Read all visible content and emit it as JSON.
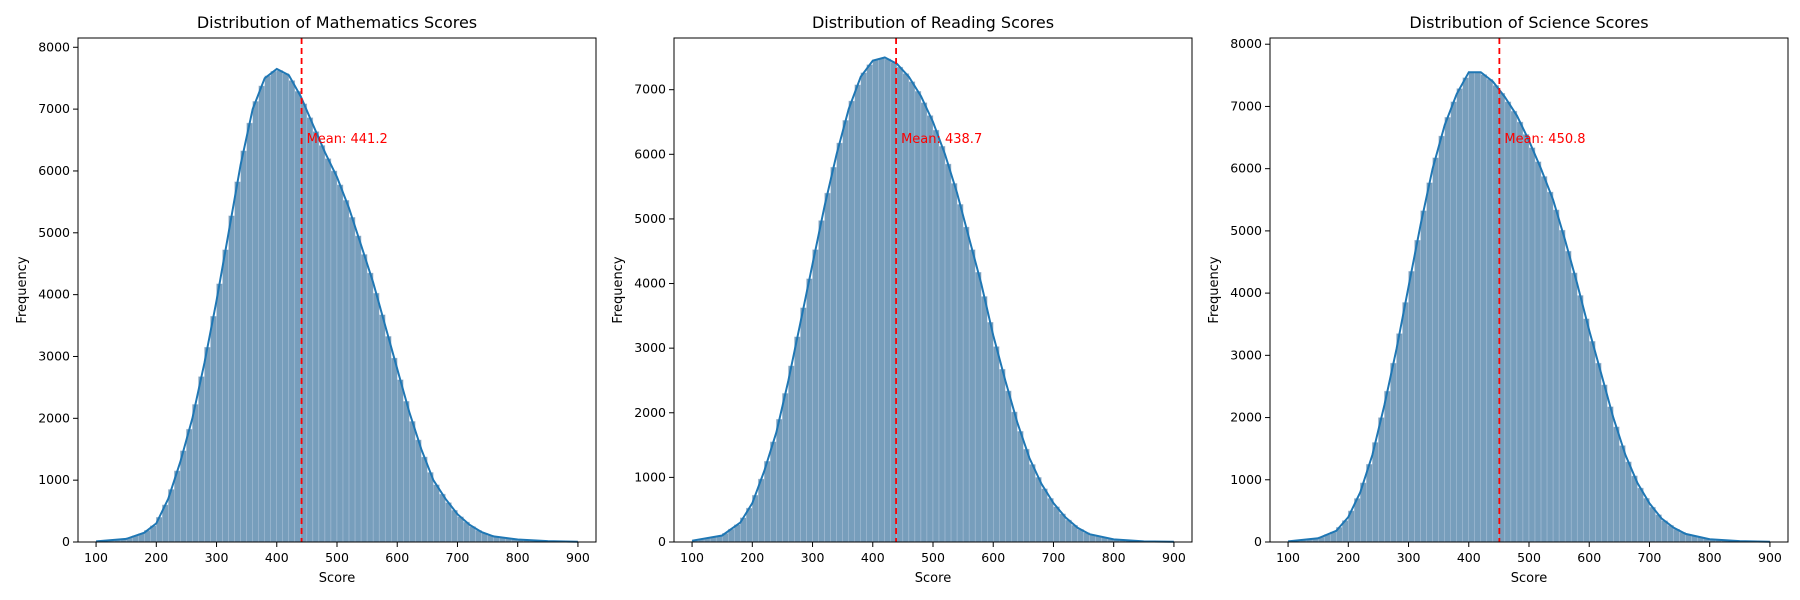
{
  "colors": {
    "bar_fill": "#4a7ea6",
    "bar_stroke": "#b9cbe0",
    "kde_line": "#1f77b4",
    "mean_line": "#ff0000",
    "axes": "#000000",
    "background": "#ffffff"
  },
  "chart_data": [
    {
      "type": "bar",
      "title": "Distribution of Mathematics Scores",
      "xlabel": "Score",
      "ylabel": "Frequency",
      "xlim": [
        70,
        930
      ],
      "ylim": [
        0,
        8150
      ],
      "xticks": [
        100,
        200,
        300,
        400,
        500,
        600,
        700,
        800,
        900
      ],
      "yticks": [
        0,
        1000,
        2000,
        3000,
        4000,
        5000,
        6000,
        7000,
        8000
      ],
      "bin_width": 10,
      "mean": 441.2,
      "mean_label": "Mean: 441.2",
      "kde_points": [
        [
          100,
          10
        ],
        [
          150,
          50
        ],
        [
          180,
          150
        ],
        [
          200,
          300
        ],
        [
          220,
          700
        ],
        [
          240,
          1300
        ],
        [
          260,
          2000
        ],
        [
          280,
          2900
        ],
        [
          300,
          3900
        ],
        [
          320,
          5000
        ],
        [
          340,
          6100
        ],
        [
          360,
          7000
        ],
        [
          380,
          7500
        ],
        [
          400,
          7650
        ],
        [
          420,
          7550
        ],
        [
          440,
          7200
        ],
        [
          460,
          6750
        ],
        [
          480,
          6300
        ],
        [
          500,
          5900
        ],
        [
          520,
          5400
        ],
        [
          540,
          4800
        ],
        [
          560,
          4200
        ],
        [
          580,
          3500
        ],
        [
          600,
          2800
        ],
        [
          620,
          2100
        ],
        [
          640,
          1500
        ],
        [
          660,
          1000
        ],
        [
          680,
          700
        ],
        [
          700,
          450
        ],
        [
          720,
          280
        ],
        [
          740,
          160
        ],
        [
          760,
          90
        ],
        [
          800,
          40
        ],
        [
          850,
          15
        ],
        [
          900,
          5
        ]
      ]
    },
    {
      "type": "bar",
      "title": "Distribution of Reading Scores",
      "xlabel": "Score",
      "ylabel": "Frequency",
      "xlim": [
        70,
        930
      ],
      "ylim": [
        0,
        7800
      ],
      "xticks": [
        100,
        200,
        300,
        400,
        500,
        600,
        700,
        800,
        900
      ],
      "yticks": [
        0,
        1000,
        2000,
        3000,
        4000,
        5000,
        6000,
        7000
      ],
      "bin_width": 10,
      "mean": 438.7,
      "mean_label": "Mean: 438.7",
      "kde_points": [
        [
          100,
          20
        ],
        [
          150,
          100
        ],
        [
          180,
          300
        ],
        [
          200,
          600
        ],
        [
          220,
          1100
        ],
        [
          240,
          1700
        ],
        [
          260,
          2500
        ],
        [
          280,
          3400
        ],
        [
          300,
          4300
        ],
        [
          320,
          5200
        ],
        [
          340,
          6000
        ],
        [
          360,
          6700
        ],
        [
          380,
          7200
        ],
        [
          400,
          7450
        ],
        [
          420,
          7500
        ],
        [
          440,
          7400
        ],
        [
          460,
          7200
        ],
        [
          480,
          6900
        ],
        [
          500,
          6500
        ],
        [
          520,
          6000
        ],
        [
          540,
          5400
        ],
        [
          560,
          4700
        ],
        [
          580,
          4000
        ],
        [
          600,
          3200
        ],
        [
          620,
          2500
        ],
        [
          640,
          1850
        ],
        [
          660,
          1300
        ],
        [
          680,
          900
        ],
        [
          700,
          600
        ],
        [
          720,
          380
        ],
        [
          740,
          220
        ],
        [
          760,
          120
        ],
        [
          800,
          40
        ],
        [
          850,
          10
        ],
        [
          900,
          3
        ]
      ]
    },
    {
      "type": "bar",
      "title": "Distribution of Science Scores",
      "xlabel": "Score",
      "ylabel": "Frequency",
      "xlim": [
        70,
        930
      ],
      "ylim": [
        0,
        8100
      ],
      "xticks": [
        100,
        200,
        300,
        400,
        500,
        600,
        700,
        800,
        900
      ],
      "yticks": [
        0,
        1000,
        2000,
        3000,
        4000,
        5000,
        6000,
        7000,
        8000
      ],
      "bin_width": 10,
      "mean": 450.8,
      "mean_label": "Mean: 450.8",
      "kde_points": [
        [
          100,
          10
        ],
        [
          150,
          60
        ],
        [
          180,
          180
        ],
        [
          200,
          400
        ],
        [
          220,
          800
        ],
        [
          240,
          1400
        ],
        [
          260,
          2200
        ],
        [
          280,
          3100
        ],
        [
          300,
          4100
        ],
        [
          320,
          5100
        ],
        [
          340,
          6000
        ],
        [
          360,
          6700
        ],
        [
          380,
          7200
        ],
        [
          400,
          7550
        ],
        [
          420,
          7550
        ],
        [
          440,
          7400
        ],
        [
          460,
          7150
        ],
        [
          480,
          6850
        ],
        [
          500,
          6450
        ],
        [
          520,
          6000
        ],
        [
          540,
          5500
        ],
        [
          560,
          4850
        ],
        [
          580,
          4150
        ],
        [
          600,
          3400
        ],
        [
          620,
          2700
        ],
        [
          640,
          2000
        ],
        [
          660,
          1400
        ],
        [
          680,
          950
        ],
        [
          700,
          620
        ],
        [
          720,
          380
        ],
        [
          740,
          230
        ],
        [
          760,
          130
        ],
        [
          800,
          45
        ],
        [
          850,
          15
        ],
        [
          900,
          5
        ]
      ]
    }
  ]
}
